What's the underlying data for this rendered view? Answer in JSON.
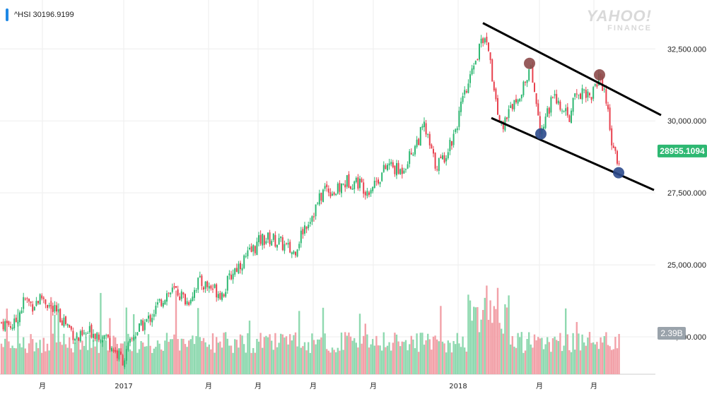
{
  "ticker": {
    "label": "^HSI 30196.9199"
  },
  "watermark": {
    "line1": "YAHOO!",
    "line2": "FINANCE"
  },
  "price_badge": {
    "text": "28955.1094",
    "color": "#2eb872"
  },
  "volume_badge": {
    "text": "2.39B",
    "color": "#9aa3ab"
  },
  "colors": {
    "up": "#2eb872",
    "down": "#e8414e",
    "vol_up": "#8fd9b0",
    "vol_down": "#f2a1a8",
    "grid": "#eeeeee",
    "trendline": "#000000",
    "peak_marker": "#8c4a4a",
    "trough_marker": "#2c4a8c"
  },
  "chart_data": {
    "type": "candlestick",
    "y_ticks": [
      "32,500.000",
      "30,000.000",
      "27,500.000",
      "25,000.000",
      "22,500.000"
    ],
    "y_tick_values": [
      32500,
      30000,
      27500,
      25000,
      22500
    ],
    "ylim": [
      21200,
      34200
    ],
    "x_ticks": [
      "月",
      "2017",
      "月",
      "月",
      "月",
      "月",
      "2018",
      "月",
      "月"
    ],
    "x_tick_positions": [
      0.06,
      0.175,
      0.295,
      0.365,
      0.443,
      0.528,
      0.648,
      0.763,
      0.84
    ],
    "last_price": 28955.1094,
    "volume_last": "2.39B",
    "price_path": [
      [
        0.0,
        23000
      ],
      [
        0.02,
        22900
      ],
      [
        0.035,
        23800
      ],
      [
        0.045,
        23600
      ],
      [
        0.06,
        23900
      ],
      [
        0.075,
        23400
      ],
      [
        0.09,
        23100
      ],
      [
        0.11,
        22400
      ],
      [
        0.13,
        22700
      ],
      [
        0.15,
        22500
      ],
      [
        0.165,
        21900
      ],
      [
        0.175,
        21700
      ],
      [
        0.19,
        22600
      ],
      [
        0.21,
        23100
      ],
      [
        0.235,
        24000
      ],
      [
        0.25,
        24100
      ],
      [
        0.265,
        23700
      ],
      [
        0.28,
        24400
      ],
      [
        0.3,
        24200
      ],
      [
        0.315,
        24000
      ],
      [
        0.33,
        24800
      ],
      [
        0.35,
        25300
      ],
      [
        0.37,
        25900
      ],
      [
        0.385,
        25900
      ],
      [
        0.4,
        25700
      ],
      [
        0.415,
        25400
      ],
      [
        0.43,
        26300
      ],
      [
        0.445,
        26900
      ],
      [
        0.46,
        27700
      ],
      [
        0.475,
        27500
      ],
      [
        0.49,
        27900
      ],
      [
        0.505,
        27900
      ],
      [
        0.52,
        27600
      ],
      [
        0.535,
        28000
      ],
      [
        0.55,
        28500
      ],
      [
        0.565,
        28200
      ],
      [
        0.58,
        28800
      ],
      [
        0.6,
        29800
      ],
      [
        0.615,
        28500
      ],
      [
        0.625,
        28600
      ],
      [
        0.64,
        29400
      ],
      [
        0.655,
        30700
      ],
      [
        0.665,
        31400
      ],
      [
        0.675,
        32200
      ],
      [
        0.685,
        33100
      ],
      [
        0.692,
        32500
      ],
      [
        0.698,
        31100
      ],
      [
        0.705,
        30200
      ],
      [
        0.712,
        29700
      ],
      [
        0.72,
        30300
      ],
      [
        0.73,
        30900
      ],
      [
        0.74,
        31100
      ],
      [
        0.75,
        31800
      ],
      [
        0.758,
        30800
      ],
      [
        0.765,
        29600
      ],
      [
        0.775,
        30400
      ],
      [
        0.785,
        30800
      ],
      [
        0.795,
        30300
      ],
      [
        0.805,
        30100
      ],
      [
        0.815,
        30900
      ],
      [
        0.825,
        31100
      ],
      [
        0.835,
        30800
      ],
      [
        0.848,
        31600
      ],
      [
        0.855,
        31100
      ],
      [
        0.865,
        29400
      ],
      [
        0.873,
        28400
      ],
      [
        0.878,
        28955
      ]
    ],
    "channel_upper": [
      [
        0.683,
        33400
      ],
      [
        0.935,
        30200
      ]
    ],
    "channel_lower": [
      [
        0.695,
        30100
      ],
      [
        0.925,
        27600
      ]
    ],
    "peaks": [
      [
        0.749,
        32000
      ],
      [
        0.848,
        31600
      ]
    ],
    "troughs": [
      [
        0.765,
        29550
      ],
      [
        0.875,
        28200
      ]
    ]
  }
}
